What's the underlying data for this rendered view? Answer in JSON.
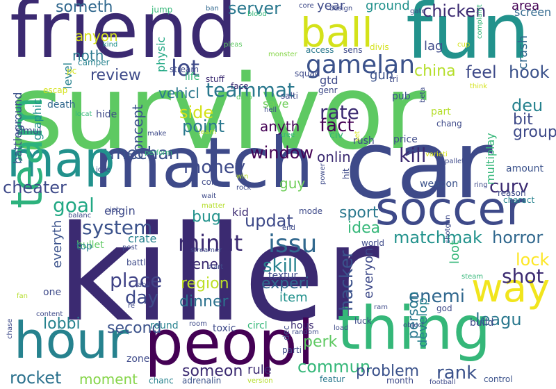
{
  "words": [
    {
      "text": "survivor",
      "color": "#5ec962"
    },
    {
      "text": "killer",
      "color": "#3b2a71"
    },
    {
      "text": "car",
      "color": "#3e4a89"
    },
    {
      "text": "friend",
      "color": "#3b2a71"
    },
    {
      "text": "match",
      "color": "#3e4a89"
    },
    {
      "text": "fun",
      "color": "#22928c"
    },
    {
      "text": "thing",
      "color": "#35b779"
    },
    {
      "text": "peopl",
      "color": "#440154"
    },
    {
      "text": "hour",
      "color": "#26828e"
    },
    {
      "text": "map",
      "color": "#21918c"
    },
    {
      "text": "team",
      "color": "#2db27d"
    },
    {
      "text": "soccer",
      "color": "#3e4a89"
    },
    {
      "text": "ball",
      "color": "#d4e21a"
    },
    {
      "text": "way",
      "color": "#f1e51d"
    },
    {
      "text": "gamelan",
      "color": "#3b528b"
    },
    {
      "text": "lot",
      "color": "#3e4a89"
    },
    {
      "text": "teammat",
      "color": "#2a788e"
    },
    {
      "text": "system",
      "color": "#3b528b"
    },
    {
      "text": "goal",
      "color": "#22a884"
    },
    {
      "text": "mechan",
      "color": "#3b528b"
    },
    {
      "text": "match­mak",
      "color": "#22928c"
    },
    {
      "text": "cheater",
      "color": "#3e4a89"
    },
    {
      "text": "issu",
      "color": "#31688e"
    },
    {
      "text": "minut",
      "color": "#3b2a71"
    },
    {
      "text": "place",
      "color": "#414487"
    },
    {
      "text": "day",
      "color": "#3e4a89"
    },
    {
      "text": "hacker",
      "color": "#3b528b"
    },
    {
      "text": "money",
      "color": "#3e4a89"
    },
    {
      "text": "window",
      "color": "#440154"
    },
    {
      "text": "rocket",
      "color": "#2c728e"
    },
    {
      "text": "server",
      "color": "#2a788e"
    },
    {
      "text": "chicken",
      "color": "#3b2a71"
    },
    {
      "text": "someth",
      "color": "#31688e"
    },
    {
      "text": "review",
      "color": "#3e4a89"
    },
    {
      "text": "feel",
      "color": "#3e4a89"
    },
    {
      "text": "hook",
      "color": "#3b528b"
    },
    {
      "text": "china",
      "color": "#b5de2b"
    },
    {
      "text": "rate",
      "color": "#3b2a71"
    },
    {
      "text": "fact",
      "color": "#440154"
    },
    {
      "text": "point",
      "color": "#2a788e"
    },
    {
      "text": "side",
      "color": "#d4e21a"
    },
    {
      "text": "updat",
      "color": "#3e4a89"
    },
    {
      "text": "bug",
      "color": "#22928c"
    },
    {
      "text": "region",
      "color": "#bddf26"
    },
    {
      "text": "dinner",
      "color": "#2c728e"
    },
    {
      "text": "gener",
      "color": "#3b2a71"
    },
    {
      "text": "skill",
      "color": "#26828e"
    },
    {
      "text": "experi",
      "color": "#31688e"
    },
    {
      "text": "enemi",
      "color": "#31688e"
    },
    {
      "text": "leagu",
      "color": "#2a788e"
    },
    {
      "text": "shot",
      "color": "#3b2a71"
    },
    {
      "text": "lobbi",
      "color": "#26828e"
    },
    {
      "text": "second",
      "color": "#3b528b"
    },
    {
      "text": "perk",
      "color": "#5ec962"
    },
    {
      "text": "commun",
      "color": "#35b779"
    },
    {
      "text": "rank",
      "color": "#3b528b"
    },
    {
      "text": "problem",
      "color": "#3b528b"
    },
    {
      "text": "someon",
      "color": "#3b2a71"
    },
    {
      "text": "moment",
      "color": "#86d549"
    },
    {
      "text": "kill",
      "color": "#3b2a71"
    },
    {
      "text": "lock",
      "color": "#fde725"
    },
    {
      "text": "horror",
      "color": "#31688e"
    },
    {
      "text": "curv",
      "color": "#3b2a71"
    },
    {
      "text": "deu",
      "color": "#26828e"
    },
    {
      "text": "bit",
      "color": "#3e4a89"
    },
    {
      "text": "group",
      "color": "#3e4a89"
    },
    {
      "text": "sport",
      "color": "#2a788e"
    },
    {
      "text": "idea",
      "color": "#35b779"
    },
    {
      "text": "guy",
      "color": "#6ece58"
    },
    {
      "text": "onlin",
      "color": "#3b2a71"
    },
    {
      "text": "anyth",
      "color": "#440154"
    },
    {
      "text": "concept",
      "color": "#3b528b"
    },
    {
      "text": "anyon",
      "color": "#d4e21a"
    },
    {
      "text": "noth",
      "color": "#2a788e"
    },
    {
      "text": "vehicl",
      "color": "#2a788e"
    },
    {
      "text": "year",
      "color": "#3e4a89"
    },
    {
      "text": "ground",
      "color": "#21918c"
    },
    {
      "text": "area",
      "color": "#440154"
    },
    {
      "text": "screen",
      "color": "#31688e"
    },
    {
      "text": "lag",
      "color": "#3e4a89"
    },
    {
      "text": "crash",
      "color": "#31688e"
    },
    {
      "text": "person",
      "color": "#2a788e"
    },
    {
      "text": "develop",
      "color": "#26828e"
    },
    {
      "text": "item",
      "color": "#21918c"
    },
    {
      "text": "loot",
      "color": "#35b779"
    },
    {
      "text": "everyon",
      "color": "#3e4a89"
    },
    {
      "text": "everyth",
      "color": "#3b528b"
    },
    {
      "text": "crate",
      "color": "#26828e"
    },
    {
      "text": "rule",
      "color": "#3b2a71"
    },
    {
      "text": "engin",
      "color": "#3e4a89"
    },
    {
      "text": "kid",
      "color": "#3b2a71"
    },
    {
      "text": "battleground",
      "color": "#3b528b"
    },
    {
      "text": "level",
      "color": "#26828e"
    },
    {
      "text": "physic",
      "color": "#22a884"
    },
    {
      "text": "graphic",
      "color": "#21918c"
    },
    {
      "text": "multiplay",
      "color": "#35b779"
    },
    {
      "text": "gtd",
      "color": "#3e4a89"
    },
    {
      "text": "gun",
      "color": "#3b528b"
    },
    {
      "text": "save",
      "color": "#6ece58"
    },
    {
      "text": "death",
      "color": "#31688e"
    },
    {
      "text": "simul",
      "color": "#3e4a89"
    },
    {
      "text": "hide",
      "color": "#3e4a89"
    },
    {
      "text": "life",
      "color": "#35b779"
    },
    {
      "text": "bullet",
      "color": "#5ec962"
    },
    {
      "text": "top",
      "color": "#26828e"
    },
    {
      "text": "round",
      "color": "#26828e"
    },
    {
      "text": "hous",
      "color": "#3b2a71"
    },
    {
      "text": "circl",
      "color": "#35b779"
    },
    {
      "text": "toxic",
      "color": "#3e4a89"
    },
    {
      "text": "build",
      "color": "#3e4a89"
    },
    {
      "text": "weapon",
      "color": "#3b528b"
    },
    {
      "text": "amount",
      "color": "#3b528b"
    },
    {
      "text": "reason",
      "color": "#3e4a89"
    },
    {
      "text": "charact",
      "color": "#26828e"
    },
    {
      "text": "textur",
      "color": "#3e4a89"
    },
    {
      "text": "zone",
      "color": "#3e4a89"
    },
    {
      "text": "chanc",
      "color": "#26828e"
    },
    {
      "text": "adrenalin",
      "color": "#3b528b"
    },
    {
      "text": "featur",
      "color": "#2a788e"
    },
    {
      "text": "month",
      "color": "#3e4a89"
    },
    {
      "text": "control",
      "color": "#3b528b"
    },
    {
      "text": "mode",
      "color": "#3e4a89"
    },
    {
      "text": "world",
      "color": "#3e4a89"
    },
    {
      "text": "civ",
      "color": "#35b779"
    },
    {
      "text": "rush",
      "color": "#3e4a89"
    },
    {
      "text": "price",
      "color": "#3e4a89"
    },
    {
      "text": "pub",
      "color": "#3b528b"
    },
    {
      "text": "tri",
      "color": "#3e4a89"
    },
    {
      "text": "part",
      "color": "#b5de2b"
    },
    {
      "text": "chang",
      "color": "#3e4a89"
    },
    {
      "text": "genr",
      "color": "#3e4a89"
    },
    {
      "text": "sens",
      "color": "#3e4a89"
    },
    {
      "text": "access",
      "color": "#2a788e"
    },
    {
      "text": "divis",
      "color": "#d4e21a"
    },
    {
      "text": "design",
      "color": "#3e4a89"
    },
    {
      "text": "squad",
      "color": "#3e4a89"
    },
    {
      "text": "salti",
      "color": "#3e4a89"
    },
    {
      "text": "face",
      "color": "#3b2a71"
    },
    {
      "text": "stuff",
      "color": "#3b2a71"
    },
    {
      "text": "stream",
      "color": "#3e4a89"
    },
    {
      "text": "camper",
      "color": "#26828e"
    },
    {
      "text": "kind",
      "color": "#21918c"
    },
    {
      "text": "pc",
      "color": "#d4e21a"
    },
    {
      "text": "escap",
      "color": "#d4e21a"
    },
    {
      "text": "jump",
      "color": "#35b779"
    },
    {
      "text": "ban",
      "color": "#31688e"
    },
    {
      "text": "blood",
      "color": "#35b779"
    },
    {
      "text": "core",
      "color": "#3e4a89"
    },
    {
      "text": "gate",
      "color": "#3e4a89"
    },
    {
      "text": "cup",
      "color": "#d4e21a"
    },
    {
      "text": "complaint",
      "color": "#35b779"
    },
    {
      "text": "think",
      "color": "#d4e21a"
    },
    {
      "text": "beta",
      "color": "#3e4a89"
    },
    {
      "text": "pleas",
      "color": "#5ec962"
    },
    {
      "text": "monster",
      "color": "#86d549"
    },
    {
      "text": "drop",
      "color": "#5ec962"
    },
    {
      "text": "hell",
      "color": "#3e4a89"
    },
    {
      "text": "tree",
      "color": "#35b779"
    },
    {
      "text": "learn",
      "color": "#b5de2b"
    },
    {
      "text": "perform",
      "color": "#35b779"
    },
    {
      "text": "make",
      "color": "#3e4a89"
    },
    {
      "text": "locat",
      "color": "#35b779"
    },
    {
      "text": "joke",
      "color": "#3e4a89"
    },
    {
      "text": "con",
      "color": "#3e4a89"
    },
    {
      "text": "win",
      "color": "#b5de2b"
    },
    {
      "text": "wait",
      "color": "#3e4a89"
    },
    {
      "text": "rock",
      "color": "#3e4a89"
    },
    {
      "text": "matter",
      "color": "#b5de2b"
    },
    {
      "text": "job",
      "color": "#3e4a89"
    },
    {
      "text": "balanc",
      "color": "#3e4a89"
    },
    {
      "text": "post",
      "color": "#3e4a89"
    },
    {
      "text": "battl",
      "color": "#3e4a89"
    },
    {
      "text": "streamer",
      "color": "#3e4a89"
    },
    {
      "text": "start",
      "color": "#3e4a89"
    },
    {
      "text": "abil",
      "color": "#3e4a89"
    },
    {
      "text": "re",
      "color": "#3e4a89"
    },
    {
      "text": "one",
      "color": "#3e4a89"
    },
    {
      "text": "fan",
      "color": "#b5de2b"
    },
    {
      "text": "content",
      "color": "#3e4a89"
    },
    {
      "text": "chase",
      "color": "#3e4a89"
    },
    {
      "text": "room",
      "color": "#3e4a89"
    },
    {
      "text": "end",
      "color": "#3e4a89"
    },
    {
      "text": "power",
      "color": "#3e4a89"
    },
    {
      "text": "hit",
      "color": "#3e4a89"
    },
    {
      "text": "set",
      "color": "#d4e21a"
    },
    {
      "text": "varieti",
      "color": "#d4e21a"
    },
    {
      "text": "pallet",
      "color": "#3e4a89"
    },
    {
      "text": "ring",
      "color": "#3e4a89"
    },
    {
      "text": "shotgun",
      "color": "#3e4a89"
    },
    {
      "text": "steam",
      "color": "#35b779"
    },
    {
      "text": "god",
      "color": "#3e4a89"
    },
    {
      "text": "object",
      "color": "#3e4a89"
    },
    {
      "text": "luck",
      "color": "#3e4a89"
    },
    {
      "text": "load",
      "color": "#3e4a89"
    },
    {
      "text": "random",
      "color": "#3e4a89"
    },
    {
      "text": "dec",
      "color": "#3e4a89"
    },
    {
      "text": "parti",
      "color": "#3e4a89"
    },
    {
      "text": "version",
      "color": "#b5de2b"
    },
    {
      "text": "football",
      "color": "#3e4a89"
    },
    {
      "text": "ram",
      "color": "#3e4a89"
    }
  ]
}
